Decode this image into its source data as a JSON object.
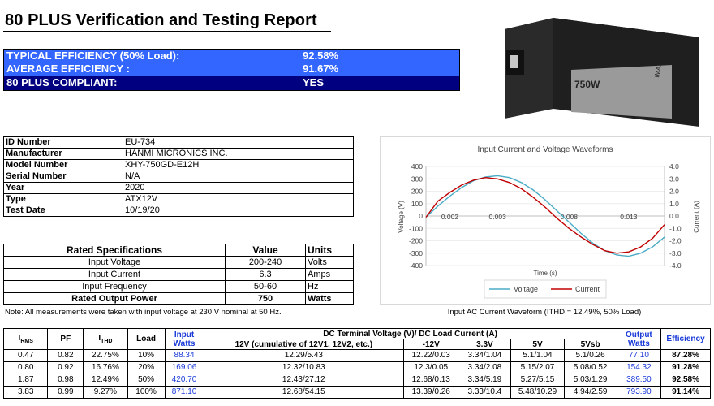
{
  "title": "80 PLUS Verification and Testing Report",
  "summary": [
    {
      "label": "TYPICAL EFFICIENCY (50% Load):",
      "value": "92.58%",
      "bg": "#3366ff"
    },
    {
      "label": "AVERAGE EFFICIENCY :",
      "value": "91.67%",
      "bg": "#3366ff"
    },
    {
      "label": "80 PLUS COMPLIANT:",
      "value": "YES",
      "bg": "#000080"
    }
  ],
  "identity": [
    {
      "key": "ID Number",
      "value": "EU-734"
    },
    {
      "key": "Manufacturer",
      "value": "HANMI MICRONICS INC."
    },
    {
      "key": "Model Number",
      "value": "XHY-750GD-E12H"
    },
    {
      "key": "Serial Number",
      "value": "N/A"
    },
    {
      "key": "Year",
      "value": "2020"
    },
    {
      "key": "Type",
      "value": "ATX12V"
    },
    {
      "key": "Test Date",
      "value": "10/19/20"
    }
  ],
  "rated": {
    "headers": [
      "Rated Specifications",
      "Value",
      "Units"
    ],
    "rows": [
      {
        "spec": "Input Voltage",
        "value": "200-240",
        "unit": "Volts"
      },
      {
        "spec": "Input Current",
        "value": "6.3",
        "unit": "Amps"
      },
      {
        "spec": "Input Frequency",
        "value": "50-60",
        "unit": "Hz"
      },
      {
        "spec": "Rated Output Power",
        "value": "750",
        "unit": "Watts"
      }
    ]
  },
  "note": "Note: All measurements were taken with input voltage at 230 V nominal at 50 Hz.",
  "photo": {
    "label": "750W",
    "brand": "IMAX"
  },
  "chart_caption": "Input AC Current Waveform (ITHD = 12.49%, 50% Load)",
  "chart_data": {
    "type": "line",
    "title": "Input Current and Voltage Waveforms",
    "xlabel": "Time (s)",
    "ylabel": "Voltage (V)",
    "y2label": "Current (A)",
    "xlim": [
      0,
      0.02
    ],
    "ylim": [
      -400,
      400
    ],
    "y2lim": [
      -4.0,
      4.0
    ],
    "xticks": [
      "0.002",
      "0.003",
      "0.008",
      "0.013"
    ],
    "yticks": [
      "400",
      "300",
      "200",
      "100",
      "0",
      "-100",
      "-200",
      "-300",
      "-400"
    ],
    "y2ticks": [
      "4.0",
      "3.0",
      "2.0",
      "1.0",
      "0.0",
      "-1.0",
      "-2.0",
      "-3.0",
      "-4.0"
    ],
    "legend": "bottom",
    "series": [
      {
        "name": "Voltage",
        "color": "#4bacc6",
        "axis": "left",
        "x": [
          0,
          0.001,
          0.002,
          0.003,
          0.004,
          0.005,
          0.006,
          0.007,
          0.008,
          0.009,
          0.01,
          0.011,
          0.012,
          0.013,
          0.014,
          0.015,
          0.016,
          0.017,
          0.018,
          0.019,
          0.02
        ],
        "y": [
          -10,
          80,
          160,
          230,
          285,
          315,
          325,
          310,
          270,
          210,
          130,
          40,
          -50,
          -140,
          -220,
          -280,
          -315,
          -325,
          -300,
          -250,
          -170
        ]
      },
      {
        "name": "Current",
        "color": "#c00000",
        "axis": "right",
        "x": [
          0,
          0.001,
          0.002,
          0.003,
          0.004,
          0.005,
          0.006,
          0.007,
          0.008,
          0.009,
          0.01,
          0.011,
          0.012,
          0.013,
          0.014,
          0.015,
          0.016,
          0.017,
          0.018,
          0.019,
          0.02
        ],
        "y": [
          -0.1,
          1.2,
          1.9,
          2.5,
          2.9,
          3.1,
          3.0,
          2.7,
          2.2,
          1.5,
          0.7,
          -0.2,
          -1.0,
          -1.7,
          -2.3,
          -2.8,
          -3.0,
          -2.9,
          -2.5,
          -1.8,
          -0.7
        ]
      }
    ]
  },
  "main_table": {
    "headers": {
      "irms": "I",
      "irms_sub": "RMS",
      "pf": "PF",
      "ithd": "I",
      "ithd_sub": "THD",
      "load": "Load",
      "input_watts": "Input Watts",
      "dc_group": "DC Terminal Voltage (V)/ DC Load Current (A)",
      "v12": "12V (cumulative of 12V1, 12V2, etc.)",
      "vm12": "-12V",
      "v33": "3.3V",
      "v5": "5V",
      "v5sb": "5Vsb",
      "output_watts": "Output Watts",
      "efficiency": "Efficiency"
    },
    "rows": [
      {
        "irms": "0.47",
        "pf": "0.82",
        "ithd": "22.75%",
        "load": "10%",
        "input": "88.34",
        "v12": "12.29/5.43",
        "vm12": "12.22/0.03",
        "v33": "3.34/1.04",
        "v5": "5.1/1.04",
        "v5sb": "5.1/0.26",
        "output": "77.10",
        "eff": "87.28%"
      },
      {
        "irms": "0.80",
        "pf": "0.92",
        "ithd": "16.76%",
        "load": "20%",
        "input": "169.06",
        "v12": "12.32/10.83",
        "vm12": "12.3/0.05",
        "v33": "3.34/2.08",
        "v5": "5.15/2.07",
        "v5sb": "5.08/0.52",
        "output": "154.32",
        "eff": "91.28%"
      },
      {
        "irms": "1.87",
        "pf": "0.98",
        "ithd": "12.49%",
        "load": "50%",
        "input": "420.70",
        "v12": "12.43/27.12",
        "vm12": "12.68/0.13",
        "v33": "3.34/5.19",
        "v5": "5.27/5.15",
        "v5sb": "5.03/1.29",
        "output": "389.50",
        "eff": "92.58%"
      },
      {
        "irms": "3.83",
        "pf": "0.99",
        "ithd": "9.27%",
        "load": "100%",
        "input": "871.10",
        "v12": "12.68/54.15",
        "vm12": "13.39/0.26",
        "v33": "3.33/10.4",
        "v5": "5.48/10.29",
        "v5sb": "4.94/2.59",
        "output": "793.90",
        "eff": "91.14%"
      }
    ]
  }
}
